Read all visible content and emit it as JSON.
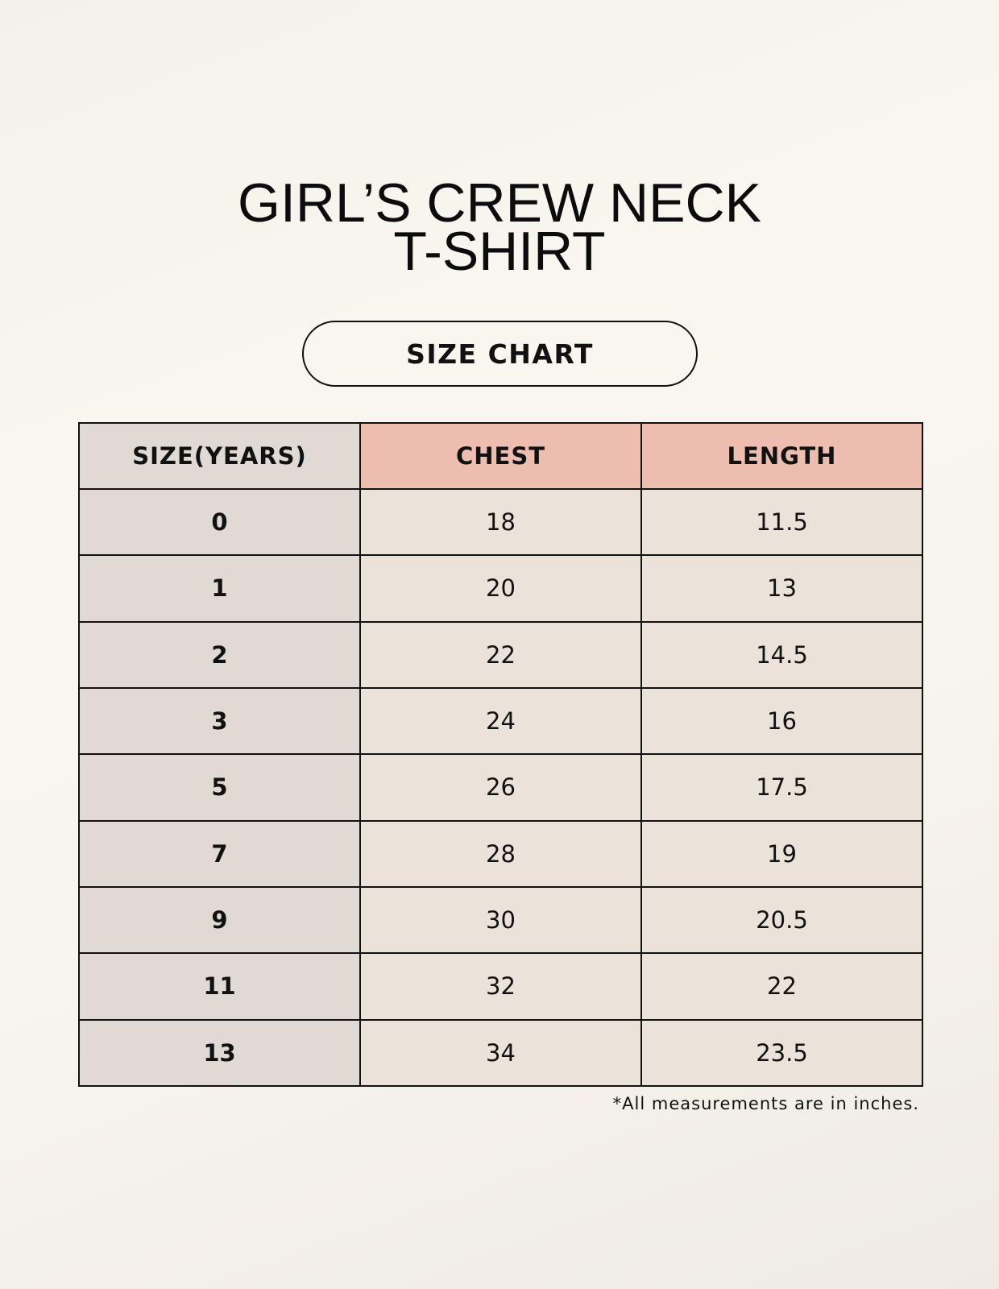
{
  "title": {
    "line1": "GIRL’S CREW NECK",
    "line2": "T-SHIRT"
  },
  "badge": "SIZE CHART",
  "table": {
    "headers": [
      "SIZE(YEARS)",
      "CHEST",
      "LENGTH"
    ],
    "rows": [
      [
        "0",
        "18",
        "11.5"
      ],
      [
        "1",
        "20",
        "13"
      ],
      [
        "2",
        "22",
        "14.5"
      ],
      [
        "3",
        "24",
        "16"
      ],
      [
        "5",
        "26",
        "17.5"
      ],
      [
        "7",
        "28",
        "19"
      ],
      [
        "9",
        "30",
        "20.5"
      ],
      [
        "11",
        "32",
        "22"
      ],
      [
        "13",
        "34",
        "23.5"
      ]
    ]
  },
  "footnote": "*All measurements are in inches.",
  "colors": {
    "size_column": "#e1d9d4",
    "header_accent": "#edbdb0",
    "cell": "#ebe3d9"
  }
}
